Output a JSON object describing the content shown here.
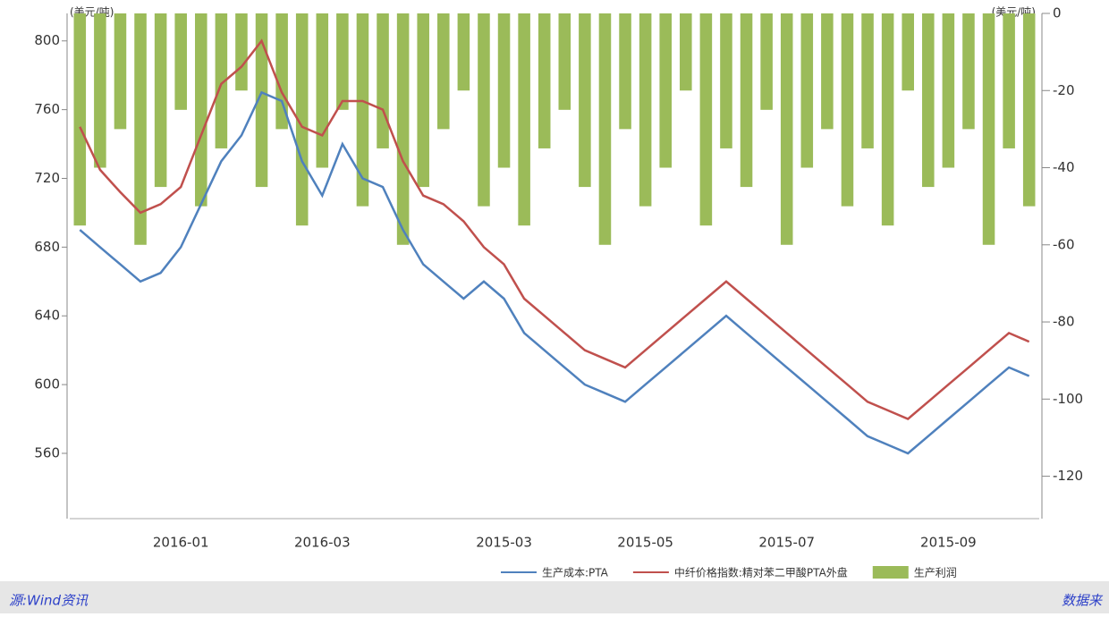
{
  "chart_data": {
    "type": "combo",
    "y_unit": "(美元/吨)",
    "y2_unit": "(美元/吨)",
    "categories": [
      null,
      null,
      null,
      null,
      null,
      "2016-01",
      null,
      null,
      null,
      null,
      null,
      null,
      "2016-03",
      null,
      null,
      null,
      null,
      null,
      null,
      null,
      null,
      "2015-03",
      null,
      null,
      null,
      null,
      null,
      null,
      "2015-05",
      null,
      null,
      null,
      null,
      null,
      null,
      "2015-07",
      null,
      null,
      null,
      null,
      null,
      null,
      null,
      "2015-09",
      null,
      null,
      null,
      null
    ],
    "ylim": [
      522,
      816
    ],
    "yticks": [
      560,
      600,
      640,
      680,
      720,
      760,
      800
    ],
    "y2lim": [
      -131,
      0
    ],
    "y2ticks": [
      0,
      -20,
      -40,
      -60,
      -80,
      -100,
      -120
    ],
    "series": [
      {
        "name": "生产利润",
        "color": "#9bbb59",
        "kind": "bar",
        "axis": "y2",
        "values": [
          -55,
          -40,
          -30,
          -60,
          -45,
          -25,
          -50,
          -35,
          -20,
          -45,
          -30,
          -55,
          -40,
          -25,
          -50,
          -35,
          -60,
          -45,
          -30,
          -20,
          -50,
          -40,
          -55,
          -35,
          -25,
          -45,
          -60,
          -30,
          -50,
          -40,
          -20,
          -55,
          -35,
          -45,
          -25,
          -60,
          -40,
          -30,
          -50,
          -35,
          -55,
          -20,
          -45,
          -40,
          -30,
          -60,
          -35,
          -50
        ]
      },
      {
        "name": "中纤价格指数:精对苯二甲酸PTA外盘",
        "color": "#c0504d",
        "kind": "line",
        "values": [
          750,
          725,
          712,
          700,
          705,
          715,
          745,
          775,
          785,
          800,
          770,
          750,
          745,
          765,
          765,
          760,
          730,
          710,
          705,
          695,
          680,
          670,
          650,
          640,
          630,
          620,
          615,
          610,
          620,
          630,
          640,
          650,
          660,
          650,
          640,
          630,
          620,
          610,
          600,
          590,
          585,
          580,
          590,
          600,
          610,
          620,
          630,
          625
        ]
      },
      {
        "name": "生产成本:PTA",
        "color": "#4f81bd",
        "kind": "line",
        "values": [
          690,
          680,
          670,
          660,
          665,
          680,
          705,
          730,
          745,
          770,
          765,
          730,
          710,
          740,
          720,
          715,
          690,
          670,
          660,
          650,
          660,
          650,
          630,
          620,
          610,
          600,
          595,
          590,
          600,
          610,
          620,
          630,
          640,
          630,
          620,
          610,
          600,
          590,
          580,
          570,
          565,
          560,
          570,
          580,
          590,
          600,
          610,
          605
        ]
      }
    ]
  },
  "footer": {
    "source": "源:Wind资讯",
    "right": "数据来"
  }
}
